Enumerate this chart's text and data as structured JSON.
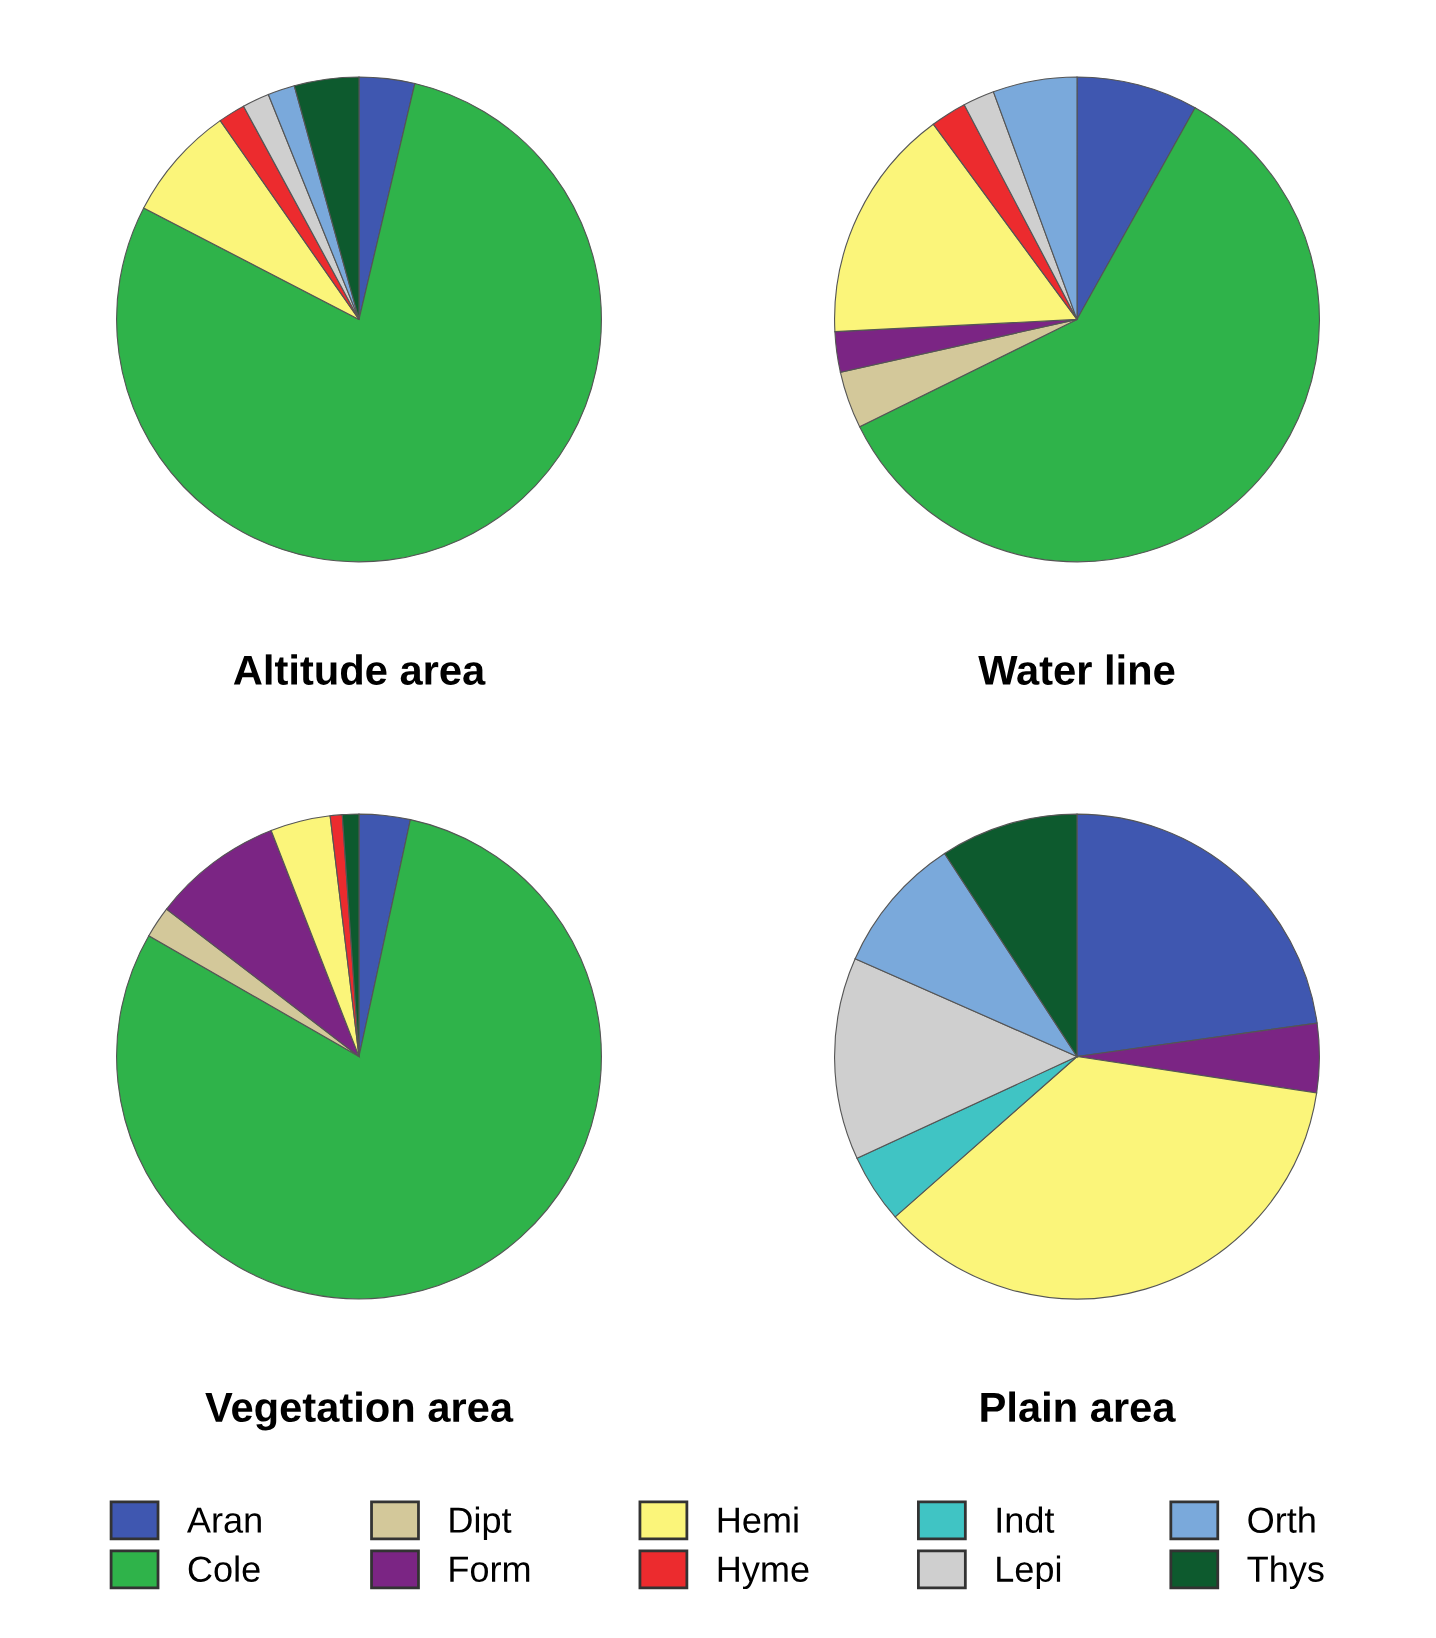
{
  "chart_data": [
    {
      "type": "pie",
      "title": "Altitude area",
      "categories": [
        null,
        null,
        null,
        null,
        null,
        null,
        null,
        null,
        null,
        null
      ],
      "values": [
        3.7,
        78.9,
        0,
        0,
        7.7,
        1.8,
        0,
        1.8,
        1.8,
        4.3
      ],
      "colors": [
        "#3f57b0",
        "#2fb34a",
        "#d3c89a",
        "#7b2584",
        "#fbf57a",
        "#ec2b2e",
        "#40c4c4",
        "#cfcfcf",
        "#7aa9db",
        "#0d5a2e"
      ]
    },
    {
      "type": "pie",
      "title": "Water line",
      "categories": [
        null,
        null,
        null,
        null,
        null,
        null,
        null,
        null,
        null,
        null
      ],
      "values": [
        8.1,
        59.6,
        3.8,
        2.7,
        15.7,
        2.4,
        0,
        2.1,
        5.6,
        0
      ],
      "colors": [
        "#3f57b0",
        "#2fb34a",
        "#d3c89a",
        "#7b2584",
        "#fbf57a",
        "#ec2b2e",
        "#40c4c4",
        "#cfcfcf",
        "#7aa9db",
        "#0d5a2e"
      ]
    },
    {
      "type": "pie",
      "title": "Vegetation area",
      "categories": [
        null,
        null,
        null,
        null,
        null,
        null,
        null,
        null,
        null,
        null
      ],
      "values": [
        3.4,
        79.9,
        2.1,
        8.7,
        4.0,
        0.8,
        0,
        0,
        0,
        1.1
      ],
      "colors": [
        "#3f57b0",
        "#2fb34a",
        "#d3c89a",
        "#7b2584",
        "#fbf57a",
        "#ec2b2e",
        "#40c4c4",
        "#cfcfcf",
        "#7aa9db",
        "#0d5a2e"
      ]
    },
    {
      "type": "pie",
      "title": "Plain area",
      "legend": "bottom",
      "categories": [
        "Aran",
        "Cole",
        "Dipt",
        "Form",
        "Hemi",
        "Hyme",
        "Indt",
        "Lepi",
        "Orth",
        "Thys"
      ],
      "values": [
        22.8,
        0,
        0,
        4.6,
        36.1,
        0,
        4.6,
        13.5,
        9.2,
        9.2
      ],
      "colors": [
        "#3f57b0",
        "#2fb34a",
        "#d3c89a",
        "#7b2584",
        "#fbf57a",
        "#ec2b2e",
        "#40c4c4",
        "#cfcfcf",
        "#7aa9db",
        "#0d5a2e"
      ]
    }
  ]
}
